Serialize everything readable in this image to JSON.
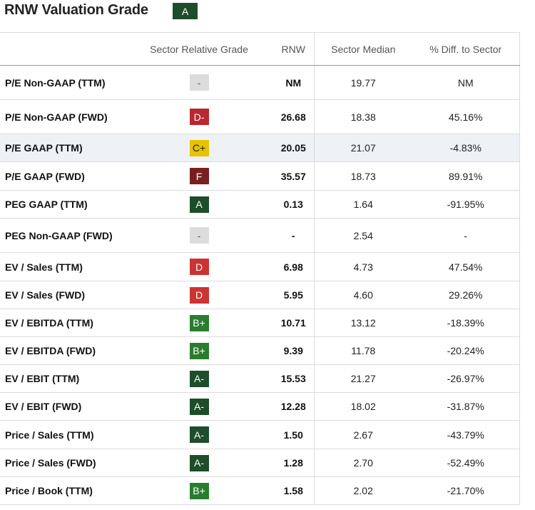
{
  "header": {
    "title": "RNW Valuation Grade",
    "overall_grade": "A"
  },
  "columns": {
    "sector_relative_grade": "Sector Relative Grade",
    "rnw": "RNW",
    "sector_median": "Sector Median",
    "diff_to_sector": "% Diff. to Sector"
  },
  "rows": [
    {
      "metric": "P/E Non-GAAP (TTM)",
      "grade": "-",
      "rnw": "NM",
      "median": "19.77",
      "diff": "NM"
    },
    {
      "metric": "P/E Non-GAAP (FWD)",
      "grade": "D-",
      "rnw": "26.68",
      "median": "18.38",
      "diff": "45.16%"
    },
    {
      "metric": "P/E GAAP (TTM)",
      "grade": "C+",
      "rnw": "20.05",
      "median": "21.07",
      "diff": "-4.83%"
    },
    {
      "metric": "P/E GAAP (FWD)",
      "grade": "F",
      "rnw": "35.57",
      "median": "18.73",
      "diff": "89.91%"
    },
    {
      "metric": "PEG GAAP (TTM)",
      "grade": "A",
      "rnw": "0.13",
      "median": "1.64",
      "diff": "-91.95%"
    },
    {
      "metric": "PEG Non-GAAP (FWD)",
      "grade": "-",
      "rnw": "-",
      "median": "2.54",
      "diff": "-"
    },
    {
      "metric": "EV / Sales (TTM)",
      "grade": "D",
      "rnw": "6.98",
      "median": "4.73",
      "diff": "47.54%"
    },
    {
      "metric": "EV / Sales (FWD)",
      "grade": "D",
      "rnw": "5.95",
      "median": "4.60",
      "diff": "29.26%"
    },
    {
      "metric": "EV / EBITDA (TTM)",
      "grade": "B+",
      "rnw": "10.71",
      "median": "13.12",
      "diff": "-18.39%"
    },
    {
      "metric": "EV / EBITDA (FWD)",
      "grade": "B+",
      "rnw": "9.39",
      "median": "11.78",
      "diff": "-20.24%"
    },
    {
      "metric": "EV / EBIT (TTM)",
      "grade": "A-",
      "rnw": "15.53",
      "median": "21.27",
      "diff": "-26.97%"
    },
    {
      "metric": "EV / EBIT (FWD)",
      "grade": "A-",
      "rnw": "12.28",
      "median": "18.02",
      "diff": "-31.87%"
    },
    {
      "metric": "Price / Sales (TTM)",
      "grade": "A-",
      "rnw": "1.50",
      "median": "2.67",
      "diff": "-43.79%"
    },
    {
      "metric": "Price / Sales (FWD)",
      "grade": "A-",
      "rnw": "1.28",
      "median": "2.70",
      "diff": "-52.49%"
    },
    {
      "metric": "Price / Book (TTM)",
      "grade": "B+",
      "rnw": "1.58",
      "median": "2.02",
      "diff": "-21.70%"
    }
  ],
  "grade_colors": {
    "-": "#dcdcdc",
    "A": "#1e4d2b",
    "A-": "#1e4d2b",
    "B+": "#2a7d2e",
    "C+": "#e6c200",
    "D": "#cc3333",
    "D-": "#b8282e",
    "F": "#7a1f1f"
  },
  "highlighted_row": "P/E GAAP (TTM)"
}
